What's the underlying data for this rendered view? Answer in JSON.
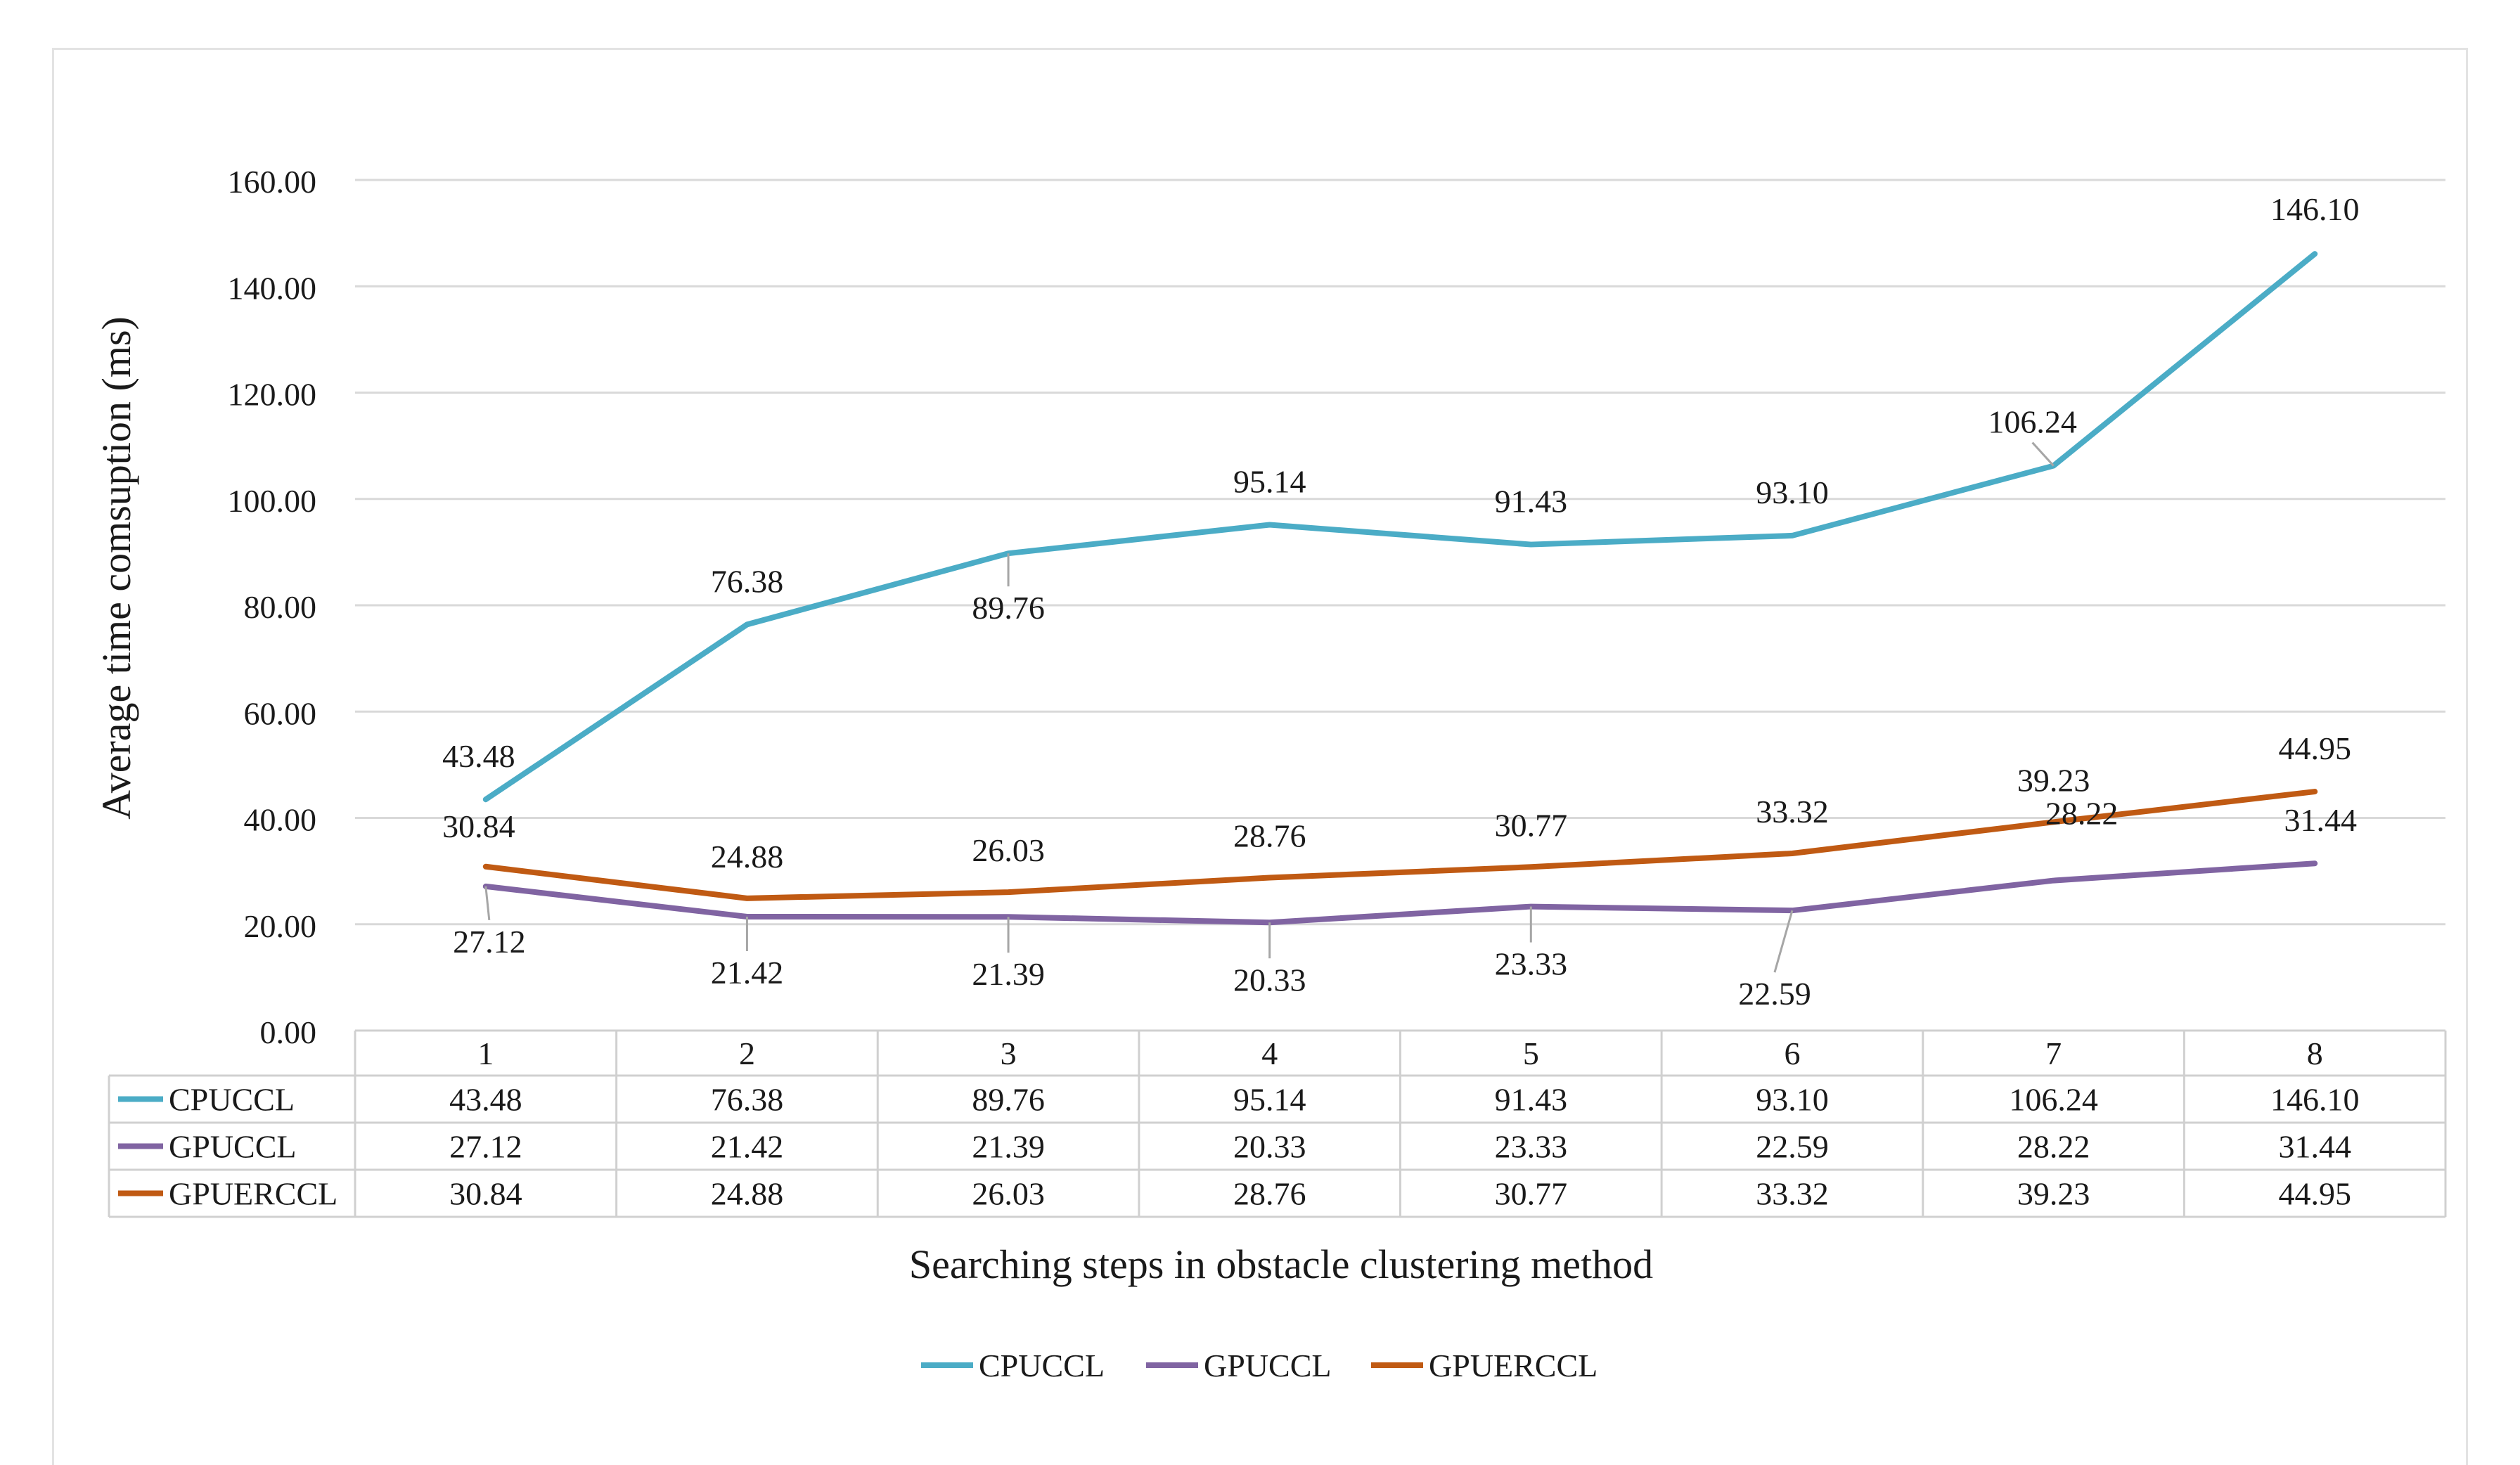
{
  "chart_data": {
    "type": "line",
    "title": "",
    "xlabel": "Searching steps in obstacle clustering method",
    "ylabel": "Average time comsuption (ms)",
    "categories": [
      "1",
      "2",
      "3",
      "4",
      "5",
      "6",
      "7",
      "8"
    ],
    "ylim": [
      0,
      160
    ],
    "yticks": [
      0,
      20,
      40,
      60,
      80,
      100,
      120,
      140,
      160
    ],
    "ytick_labels": [
      "0.00",
      "20.00",
      "40.00",
      "60.00",
      "80.00",
      "100.00",
      "120.00",
      "140.00",
      "160.00"
    ],
    "grid": true,
    "legend_position": "bottom",
    "data_table": true,
    "series": [
      {
        "name": "CPUCCL",
        "color": "#4bacc6",
        "values": [
          43.48,
          76.38,
          89.76,
          95.14,
          91.43,
          93.1,
          106.24,
          146.1
        ],
        "labels": [
          "43.48",
          "76.38",
          "89.76",
          "95.14",
          "91.43",
          "93.10",
          "106.24",
          "146.10"
        ]
      },
      {
        "name": "GPUCCL",
        "color": "#8064a2",
        "values": [
          27.12,
          21.42,
          21.39,
          20.33,
          23.33,
          22.59,
          28.22,
          31.44
        ],
        "labels": [
          "27.12",
          "21.42",
          "21.39",
          "20.33",
          "23.33",
          "22.59",
          "28.22",
          "31.44"
        ]
      },
      {
        "name": "GPUERCCL",
        "color": "#c05a13",
        "values": [
          30.84,
          24.88,
          26.03,
          28.76,
          30.77,
          33.32,
          39.23,
          44.95
        ],
        "labels": [
          "30.84",
          "24.88",
          "26.03",
          "28.76",
          "30.77",
          "33.32",
          "39.23",
          "44.95"
        ]
      }
    ]
  }
}
